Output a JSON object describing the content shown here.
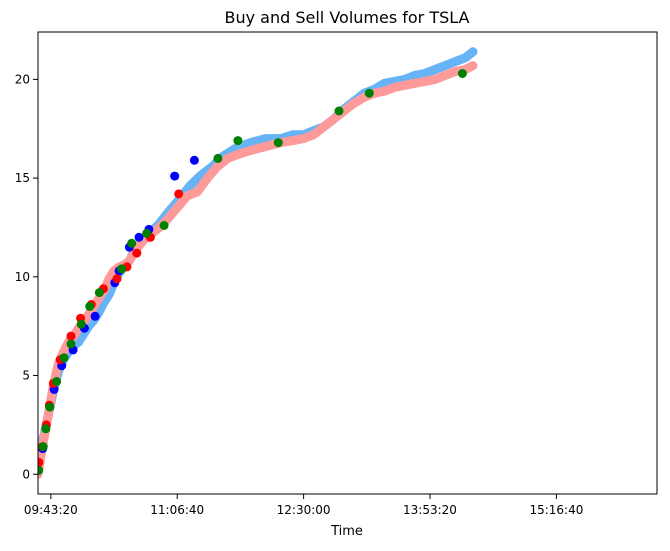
{
  "chart_data": {
    "type": "scatter",
    "title": "Buy and Sell Volumes for TSLA",
    "xlabel": "Time",
    "ylabel": "",
    "xlim": [
      "09:34:53",
      "16:23:00"
    ],
    "ylim": [
      -1.0,
      22.4
    ],
    "x_ticks": [
      "09:43:20",
      "11:06:40",
      "12:30:00",
      "13:53:20",
      "15:16:40"
    ],
    "y_ticks": [
      "0",
      "5",
      "10",
      "15",
      "20"
    ],
    "colors": {
      "buy_line": "#66b3f5",
      "sell_line": "#ff9a9a",
      "buy_dot": "#0000ff",
      "sell_dot": "#ff0000",
      "neutral_dot": "#008000"
    },
    "series": [
      {
        "color": "#66b3f5",
        "style": "thick-line",
        "points": [
          [
            "09:34:53",
            0.2
          ],
          [
            "09:38:20",
            1.8
          ],
          [
            "09:41:40",
            3.0
          ],
          [
            "09:45:00",
            4.2
          ],
          [
            "09:48:20",
            5.2
          ],
          [
            "09:51:40",
            5.8
          ],
          [
            "09:55:00",
            6.2
          ],
          [
            "09:58:20",
            6.5
          ],
          [
            "10:01:40",
            6.7
          ],
          [
            "10:05:00",
            7.1
          ],
          [
            "10:08:20",
            7.5
          ],
          [
            "10:11:40",
            7.8
          ],
          [
            "10:15:00",
            8.2
          ],
          [
            "10:18:20",
            8.7
          ],
          [
            "10:21:40",
            9.1
          ],
          [
            "10:25:00",
            9.7
          ],
          [
            "10:28:20",
            10.2
          ],
          [
            "10:31:40",
            10.5
          ],
          [
            "10:35:00",
            10.8
          ],
          [
            "10:38:20",
            11.3
          ],
          [
            "10:41:40",
            11.6
          ],
          [
            "10:45:00",
            11.9
          ],
          [
            "10:50:00",
            12.3
          ],
          [
            "10:55:00",
            12.7
          ],
          [
            "11:00:00",
            13.2
          ],
          [
            "11:06:40",
            13.8
          ],
          [
            "11:15:00",
            14.6
          ],
          [
            "11:21:40",
            15.1
          ],
          [
            "11:30:00",
            15.6
          ],
          [
            "11:36:40",
            16.1
          ],
          [
            "11:45:00",
            16.5
          ],
          [
            "11:55:00",
            16.8
          ],
          [
            "12:05:00",
            17.0
          ],
          [
            "12:15:00",
            17.0
          ],
          [
            "12:23:00",
            17.2
          ],
          [
            "12:30:00",
            17.2
          ],
          [
            "12:36:40",
            17.4
          ],
          [
            "12:43:20",
            17.6
          ],
          [
            "12:50:00",
            18.0
          ],
          [
            "12:56:40",
            18.5
          ],
          [
            "13:03:20",
            18.9
          ],
          [
            "13:10:00",
            19.3
          ],
          [
            "13:16:40",
            19.5
          ],
          [
            "13:23:20",
            19.8
          ],
          [
            "13:30:00",
            19.9
          ],
          [
            "13:36:40",
            20.0
          ],
          [
            "13:43:20",
            20.2
          ],
          [
            "13:50:00",
            20.3
          ],
          [
            "13:56:40",
            20.5
          ],
          [
            "14:03:20",
            20.7
          ],
          [
            "14:10:00",
            20.9
          ],
          [
            "14:16:40",
            21.1
          ],
          [
            "14:21:40",
            21.4
          ]
        ]
      },
      {
        "color": "#ff9a9a",
        "style": "thick-line",
        "points": [
          [
            "09:34:53",
            0.0
          ],
          [
            "09:38:20",
            1.6
          ],
          [
            "09:41:40",
            3.0
          ],
          [
            "09:45:00",
            4.5
          ],
          [
            "09:48:20",
            5.6
          ],
          [
            "09:51:40",
            6.2
          ],
          [
            "09:55:00",
            6.7
          ],
          [
            "09:58:20",
            7.0
          ],
          [
            "10:01:40",
            7.4
          ],
          [
            "10:05:00",
            7.7
          ],
          [
            "10:08:20",
            8.1
          ],
          [
            "10:11:40",
            8.5
          ],
          [
            "10:15:00",
            8.9
          ],
          [
            "10:18:20",
            9.3
          ],
          [
            "10:21:40",
            9.9
          ],
          [
            "10:25:00",
            10.3
          ],
          [
            "10:28:20",
            10.5
          ],
          [
            "10:31:40",
            10.6
          ],
          [
            "10:35:00",
            10.8
          ],
          [
            "10:38:20",
            11.2
          ],
          [
            "10:41:40",
            11.6
          ],
          [
            "10:45:00",
            11.9
          ],
          [
            "10:50:00",
            12.2
          ],
          [
            "10:55:00",
            12.5
          ],
          [
            "11:00:00",
            12.9
          ],
          [
            "11:06:40",
            13.5
          ],
          [
            "11:13:20",
            14.1
          ],
          [
            "11:20:00",
            14.3
          ],
          [
            "11:26:40",
            15.0
          ],
          [
            "11:33:20",
            15.6
          ],
          [
            "11:40:00",
            16.0
          ],
          [
            "11:46:40",
            16.2
          ],
          [
            "11:55:00",
            16.4
          ],
          [
            "12:05:00",
            16.6
          ],
          [
            "12:15:00",
            16.8
          ],
          [
            "12:23:00",
            16.9
          ],
          [
            "12:30:00",
            17.0
          ],
          [
            "12:36:40",
            17.2
          ],
          [
            "12:43:20",
            17.6
          ],
          [
            "12:50:00",
            18.0
          ],
          [
            "12:56:40",
            18.4
          ],
          [
            "13:03:20",
            18.8
          ],
          [
            "13:10:00",
            19.1
          ],
          [
            "13:16:40",
            19.3
          ],
          [
            "13:23:20",
            19.4
          ],
          [
            "13:30:00",
            19.6
          ],
          [
            "13:36:40",
            19.7
          ],
          [
            "13:43:20",
            19.8
          ],
          [
            "13:50:00",
            19.9
          ],
          [
            "13:56:40",
            20.0
          ],
          [
            "14:03:20",
            20.2
          ],
          [
            "14:10:00",
            20.4
          ],
          [
            "14:16:40",
            20.5
          ],
          [
            "14:21:40",
            20.7
          ]
        ]
      },
      {
        "color": "#0000ff",
        "style": "dots",
        "points": [
          [
            "09:38:00",
            1.3
          ],
          [
            "09:45:30",
            4.3
          ],
          [
            "09:50:30",
            5.5
          ],
          [
            "09:58:00",
            6.3
          ],
          [
            "10:05:30",
            7.4
          ],
          [
            "10:12:30",
            8.0
          ],
          [
            "10:25:30",
            9.7
          ],
          [
            "10:28:20",
            10.3
          ],
          [
            "10:35:10",
            11.5
          ],
          [
            "10:41:30",
            12.0
          ],
          [
            "10:48:00",
            12.4
          ],
          [
            "11:05:00",
            15.1
          ],
          [
            "11:18:00",
            15.9
          ]
        ]
      },
      {
        "color": "#ff0000",
        "style": "dots",
        "points": [
          [
            "09:35:30",
            0.6
          ],
          [
            "09:37:50",
            1.4
          ],
          [
            "09:40:20",
            2.5
          ],
          [
            "09:42:20",
            3.5
          ],
          [
            "09:45:00",
            4.6
          ],
          [
            "09:49:30",
            5.8
          ],
          [
            "09:56:40",
            7.0
          ],
          [
            "10:03:00",
            7.9
          ],
          [
            "10:10:00",
            8.6
          ],
          [
            "10:18:00",
            9.4
          ],
          [
            "10:27:00",
            9.9
          ],
          [
            "10:33:30",
            10.5
          ],
          [
            "10:40:00",
            11.2
          ],
          [
            "10:49:00",
            12.0
          ],
          [
            "11:07:40",
            14.2
          ]
        ]
      },
      {
        "color": "#008000",
        "style": "dots",
        "points": [
          [
            "09:35:20",
            0.2
          ],
          [
            "09:38:20",
            1.4
          ],
          [
            "09:40:00",
            2.3
          ],
          [
            "09:42:40",
            3.4
          ],
          [
            "09:47:10",
            4.7
          ],
          [
            "09:52:00",
            5.9
          ],
          [
            "09:56:40",
            6.6
          ],
          [
            "10:03:20",
            7.6
          ],
          [
            "10:09:00",
            8.5
          ],
          [
            "10:15:20",
            9.2
          ],
          [
            "10:30:00",
            10.4
          ],
          [
            "10:36:40",
            11.7
          ],
          [
            "10:46:30",
            12.2
          ],
          [
            "10:58:00",
            12.6
          ],
          [
            "11:33:30",
            16.0
          ],
          [
            "11:46:40",
            16.9
          ],
          [
            "12:13:20",
            16.8
          ],
          [
            "12:53:20",
            18.4
          ],
          [
            "13:13:20",
            19.3
          ],
          [
            "14:14:40",
            20.3
          ]
        ]
      }
    ]
  }
}
